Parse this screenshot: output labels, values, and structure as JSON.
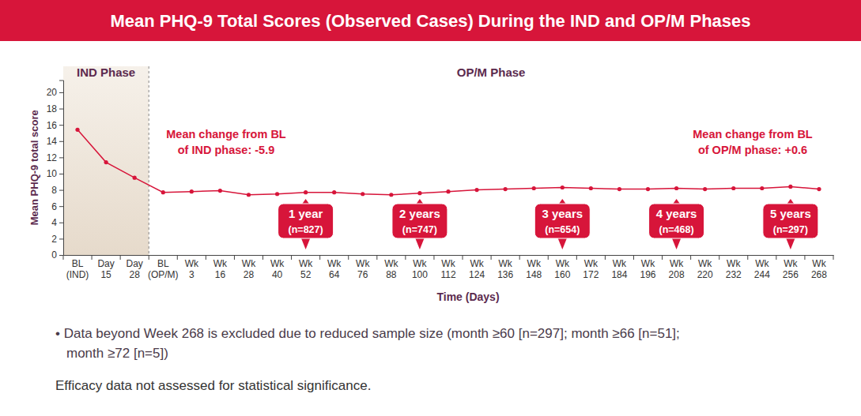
{
  "chart_data": {
    "type": "line",
    "title": "Mean PHQ-9 Total Scores (Observed Cases) During the IND and OP/M Phases",
    "x_label": "Time (Days)",
    "y_label": "Mean PHQ-9 total score",
    "categories": [
      "BL (IND)",
      "Day 15",
      "Day 28",
      "BL (OP/M)",
      "Wk 3",
      "Wk 16",
      "Wk 28",
      "Wk 40",
      "Wk 52",
      "Wk 64",
      "Wk 76",
      "Wk 88",
      "Wk 100",
      "Wk 112",
      "Wk 124",
      "Wk 136",
      "Wk 148",
      "Wk 160",
      "Wk 172",
      "Wk 184",
      "Wk 196",
      "Wk 208",
      "Wk 220",
      "Wk 232",
      "Wk 244",
      "Wk 256",
      "Wk 268"
    ],
    "values": [
      15.4,
      11.4,
      9.5,
      7.7,
      7.8,
      7.9,
      7.4,
      7.5,
      7.7,
      7.7,
      7.5,
      7.4,
      7.6,
      7.8,
      8.0,
      8.1,
      8.2,
      8.3,
      8.2,
      8.1,
      8.1,
      8.2,
      8.1,
      8.2,
      8.2,
      8.4,
      8.1
    ],
    "color": "#d7153a",
    "marker": "circle",
    "ylim": [
      0,
      21.5
    ],
    "yticks": [
      0,
      2,
      4,
      6,
      8,
      10,
      12,
      14,
      16,
      18,
      20
    ],
    "phases": [
      {
        "label": "IND Phase",
        "start": "BL (IND)",
        "end": "Day 28"
      },
      {
        "label": "OP/M Phase",
        "start": "BL (OP/M)",
        "end": "Wk 268"
      }
    ],
    "annotations": [
      {
        "lines": [
          "Mean change from BL",
          "of IND phase: -5.9"
        ]
      },
      {
        "lines": [
          "Mean change from BL",
          "of OP/M phase: +0.6"
        ]
      }
    ],
    "milestones": [
      {
        "category": "Wk 52",
        "label": "1 year",
        "n_label": "(n=827)"
      },
      {
        "category": "Wk 100",
        "label": "2 years",
        "n_label": "(n=747)"
      },
      {
        "category": "Wk 160",
        "label": "3 years",
        "n_label": "(n=654)"
      },
      {
        "category": "Wk 208",
        "label": "4 years",
        "n_label": "(n=468)"
      },
      {
        "category": "Wk 256",
        "label": "5 years",
        "n_label": "(n=297)"
      }
    ],
    "footnotes": [
      [
        "• Data beyond Week 268 is excluded due to reduced sample size (month ≥60 [n=297]; month ≥66 [n=51];",
        "month ≥72 [n=5])"
      ],
      [
        "Efficacy data not assessed for statistical significance."
      ]
    ]
  }
}
